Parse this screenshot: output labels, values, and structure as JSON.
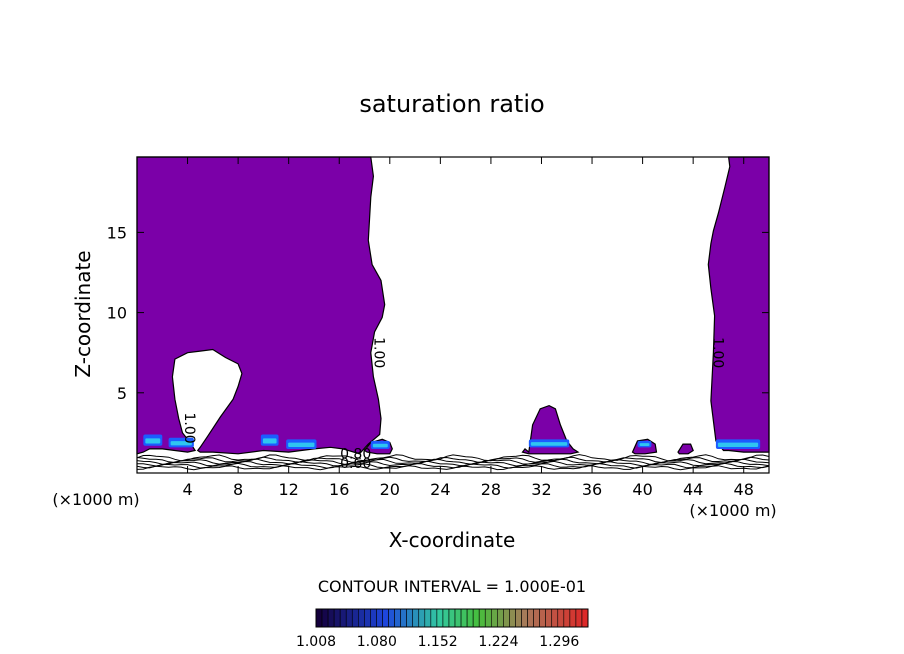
{
  "chart_data": {
    "type": "contour",
    "title": "saturation ratio",
    "xlabel": "X-coordinate",
    "ylabel": "Z-coordinate",
    "x_units_left": "(×1000 m)",
    "x_units_right": "(×1000 m)",
    "xlim": [
      0,
      50
    ],
    "ylim": [
      0,
      19.7
    ],
    "xticks": [
      4,
      8,
      12,
      16,
      20,
      24,
      28,
      32,
      36,
      40,
      44,
      48
    ],
    "yticks": [
      5,
      10,
      15
    ],
    "contour_interval_text": "CONTOUR INTERVAL = 1.000E-01",
    "contour_labels": [
      {
        "text": "1.00",
        "x": 18.8,
        "z": 7.5
      },
      {
        "text": "1.00",
        "x": 45.6,
        "z": 7.5
      },
      {
        "text": "1.00",
        "x": 3.8,
        "z": 2.8
      },
      {
        "text": "0.80",
        "x": 17.3,
        "z": 0.9
      },
      {
        "text": "0.60",
        "x": 17.3,
        "z": 0.3
      }
    ],
    "colorbar": {
      "tick_labels": [
        "1.008",
        "1.080",
        "1.152",
        "1.224",
        "1.296"
      ],
      "min": 1.008,
      "max": 1.33
    },
    "regions": [
      {
        "name": "supersaturated-left",
        "fill": "#7b00a8",
        "x": [
          0,
          18.5,
          18.7,
          18.5,
          18.3,
          18.6,
          19.3,
          19.6,
          19.4,
          18.8,
          18.5,
          18.7,
          19.1,
          19.3,
          19.2,
          18.3,
          17.6,
          16.3,
          15.3,
          14.0,
          12.0,
          10.0,
          8.0,
          6.0,
          5.0,
          4.8,
          5.0,
          5.6,
          6.6,
          7.6,
          8.0,
          8.3,
          8.0,
          7.0,
          6.0,
          5.0,
          4.0,
          3.0,
          2.8,
          3.0,
          3.3,
          3.6,
          4.2,
          4.6,
          4.0,
          3.0,
          2.0,
          1.0,
          0.5,
          0
        ],
        "z": [
          19.7,
          19.7,
          18.5,
          17.2,
          14.5,
          13.0,
          12.0,
          10.5,
          9.7,
          8.8,
          7.5,
          6.0,
          4.6,
          3.4,
          2.4,
          1.8,
          1.2,
          1.5,
          1.6,
          1.5,
          1.3,
          1.4,
          1.2,
          1.3,
          1.3,
          1.4,
          1.6,
          2.3,
          3.5,
          4.6,
          5.4,
          6.2,
          6.8,
          7.2,
          7.7,
          7.6,
          7.5,
          7.1,
          6.0,
          4.6,
          3.4,
          2.5,
          1.9,
          1.4,
          1.3,
          1.4,
          1.5,
          1.5,
          1.3,
          1.2
        ]
      },
      {
        "name": "supersaturated-right",
        "fill": "#7b00a8",
        "x": [
          46.8,
          50,
          50,
          49.3,
          48.0,
          46.8,
          46.4,
          45.8,
          45.4,
          45.6,
          45.7,
          45.4,
          45.2,
          45.4,
          45.6,
          46.0,
          46.5,
          46.9
        ],
        "z": [
          19.7,
          19.7,
          1.3,
          1.3,
          1.3,
          1.4,
          1.4,
          2.0,
          4.5,
          7.5,
          9.8,
          11.5,
          13.0,
          14.3,
          15.1,
          16.2,
          17.8,
          19.1
        ]
      },
      {
        "name": "cloud-32km",
        "fill": "#7b00a8",
        "x": [
          31.0,
          31.3,
          31.9,
          32.6,
          33.1,
          33.5,
          34.0,
          34.5,
          34.9,
          34.3,
          33.0,
          32.0,
          31.0,
          30.5,
          30.7
        ],
        "z": [
          1.3,
          3.0,
          4.0,
          4.2,
          4.0,
          3.0,
          2.0,
          1.5,
          1.3,
          1.2,
          1.2,
          1.2,
          1.2,
          1.3,
          1.5
        ]
      },
      {
        "name": "cloud-19km",
        "fill": "#7b00a8",
        "x": [
          18.0,
          18.5,
          19.4,
          20.0,
          20.2,
          20.0,
          19.0,
          18.2
        ],
        "z": [
          1.4,
          1.9,
          2.1,
          1.9,
          1.5,
          1.2,
          1.2,
          1.3
        ]
      },
      {
        "name": "cloud-40km",
        "fill": "#7b00a8",
        "x": [
          39.2,
          39.6,
          40.4,
          41.0,
          41.1,
          40.2,
          39.4
        ],
        "z": [
          1.3,
          2.0,
          2.1,
          1.8,
          1.3,
          1.2,
          1.2
        ]
      },
      {
        "name": "cloud-43km",
        "fill": "#7b00a8",
        "x": [
          42.8,
          43.2,
          43.8,
          44.0,
          43.6,
          42.9
        ],
        "z": [
          1.3,
          1.8,
          1.8,
          1.4,
          1.2,
          1.2
        ]
      }
    ],
    "high_patches": [
      {
        "x": 0.5,
        "z": 1.7,
        "w": 1.5,
        "h": 0.7
      },
      {
        "x": 2.5,
        "z": 1.6,
        "w": 2.0,
        "h": 0.6
      },
      {
        "x": 9.8,
        "z": 1.7,
        "w": 1.4,
        "h": 0.7
      },
      {
        "x": 11.8,
        "z": 1.5,
        "w": 2.4,
        "h": 0.6
      },
      {
        "x": 18.5,
        "z": 1.5,
        "w": 1.5,
        "h": 0.5
      },
      {
        "x": 31.0,
        "z": 1.6,
        "w": 3.2,
        "h": 0.5
      },
      {
        "x": 39.6,
        "z": 1.6,
        "w": 1.1,
        "h": 0.4
      },
      {
        "x": 45.8,
        "z": 1.5,
        "w": 3.5,
        "h": 0.6
      }
    ],
    "low_contours": [
      {
        "z": 0.95,
        "wave": 0.15
      },
      {
        "z": 0.82,
        "wave": 0.12
      },
      {
        "z": 0.7,
        "wave": 0.12
      },
      {
        "z": 0.58,
        "wave": 0.1
      },
      {
        "z": 0.45,
        "wave": 0.1
      },
      {
        "z": 0.33,
        "wave": 0.08
      }
    ]
  }
}
